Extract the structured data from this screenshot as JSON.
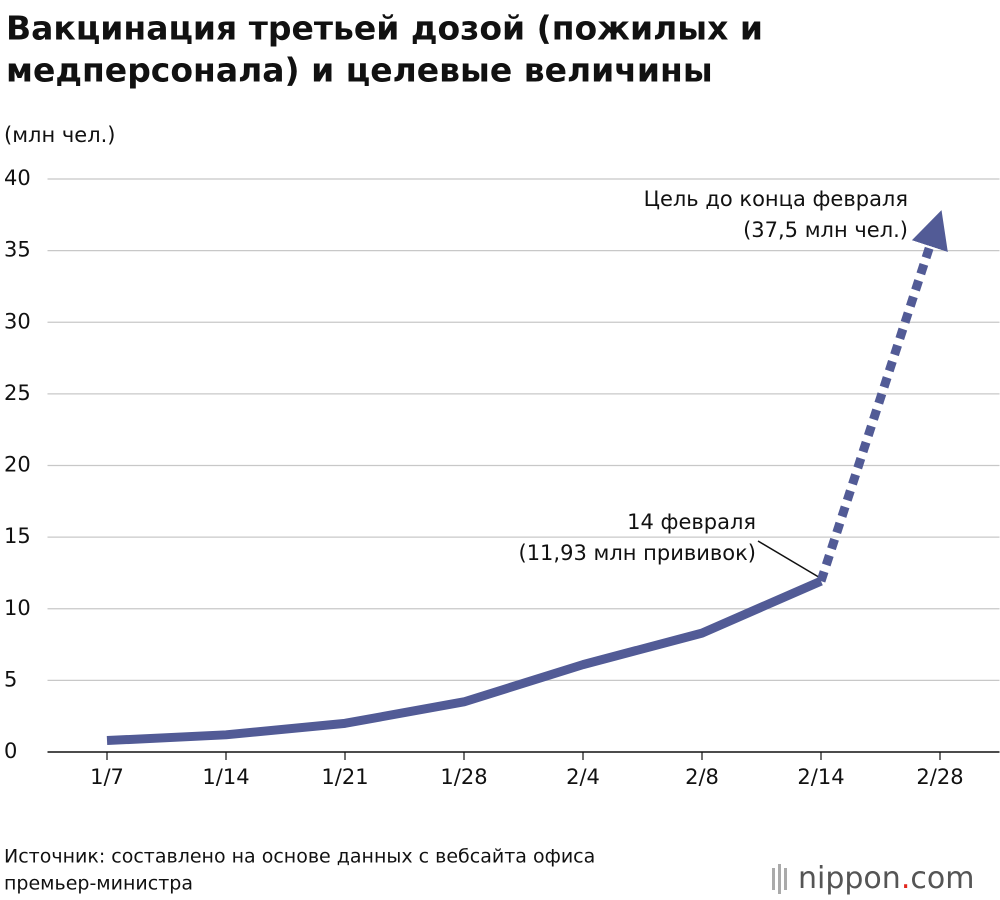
{
  "chart_data": {
    "type": "line",
    "title": [
      "Вакцинация третьей дозой (пожилых и",
      "медперсонала) и целевые величины"
    ],
    "y_label": "(млн чел.)",
    "categories": [
      "1/7",
      "1/14",
      "1/21",
      "1/28",
      "2/4",
      "2/8",
      "2/14",
      "2/28"
    ],
    "series": [
      {
        "color": "#525b96",
        "style": "solid",
        "values": [
          0.8,
          1.2,
          2.0,
          3.5,
          6.1,
          8.3,
          11.93,
          null
        ]
      },
      {
        "color": "#525b96",
        "style": "dashed",
        "arrow": true,
        "values": [
          null,
          null,
          null,
          null,
          null,
          null,
          11.93,
          37.5
        ]
      }
    ],
    "ylim": [
      0,
      40
    ],
    "yticks": [
      0,
      5,
      10,
      15,
      20,
      25,
      30,
      35,
      40
    ],
    "grid": true,
    "annotations": [
      "Цель до конца февраля",
      "(37,5 млн чел.)",
      "14 февраля",
      "(11,93 млн прививок)"
    ],
    "source": [
      "Источник: составлено на основе данных с вебсайта офиса",
      "премьер-министра"
    ],
    "logo": [
      "nippon",
      ".",
      "com"
    ]
  }
}
